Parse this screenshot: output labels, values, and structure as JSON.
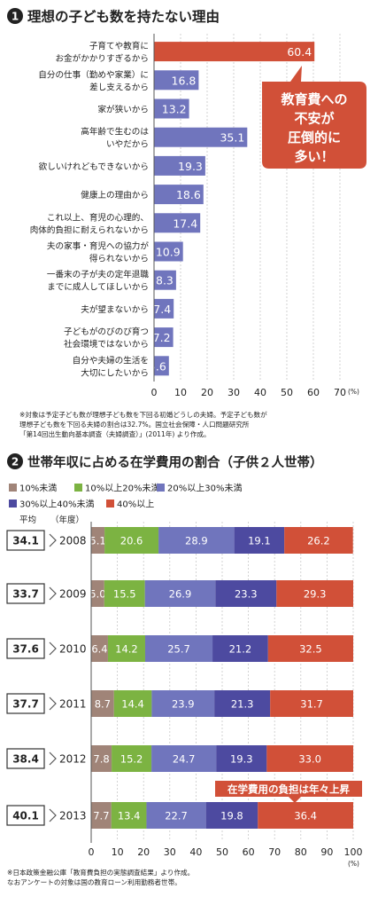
{
  "chart_data": [
    {
      "type": "bar",
      "number": "1",
      "title": "理想の子ども数を持たない理由",
      "categories": [
        [
          "子育てや教育に",
          "お金がかかりすぎるから"
        ],
        [
          "自分の仕事（勤めや家業）に",
          "差し支えるから"
        ],
        [
          "家が狭いから"
        ],
        [
          "高年齢で生むのは",
          "いやだから"
        ],
        [
          "欲しいけれどもできないから"
        ],
        [
          "健康上の理由から"
        ],
        [
          "これ以上、育児の心理的、",
          "肉体的負担に耐えられないから"
        ],
        [
          "夫の家事・育児への協力が",
          "得られないから"
        ],
        [
          "一番末の子が夫の定年退職",
          "までに成人してほしいから"
        ],
        [
          "夫が望まないから"
        ],
        [
          "子どもがのびのび育つ",
          "社会環境ではないから"
        ],
        [
          "自分や夫婦の生活を",
          "大切にしたいから"
        ]
      ],
      "values": [
        60.4,
        16.8,
        13.2,
        35.1,
        19.3,
        18.6,
        17.4,
        10.9,
        8.3,
        7.4,
        7.2,
        5.6
      ],
      "xlim": [
        0,
        70
      ],
      "xticks": [
        0,
        10,
        20,
        30,
        40,
        50,
        60,
        70
      ],
      "unit": "(%)",
      "callout": [
        "教育費への",
        "不安が",
        "圧倒的に",
        "多い！"
      ],
      "notes": [
        "※対象は予定子ども数が理想子ども数を下回る初婚どうしの夫婦。予定子ども数が",
        "理想子ども数を下回る夫婦の割合は32.7%。国立社会保障・人口問題研究所",
        "「第14回出生動向基本調査（夫婦調査）」(2011年) より作成。"
      ]
    },
    {
      "type": "stacked_bar",
      "number": "2",
      "title": "世帯年収に占める在学費用の割合（子供２人世帯）",
      "legend": [
        "10%未満",
        "10%以上20%未満",
        "20%以上30%未満",
        "30%以上40%未満",
        "40%以上"
      ],
      "colors": [
        "#a08478",
        "#7cb342",
        "#7075bd",
        "#4d4aa0",
        "#d15038"
      ],
      "avg_header": "平均",
      "year_header": "（年度）",
      "years": [
        "2008",
        "2009",
        "2010",
        "2011",
        "2012",
        "2013"
      ],
      "averages": [
        "34.1",
        "33.7",
        "37.6",
        "37.7",
        "38.4",
        "40.1"
      ],
      "series": [
        {
          "name": "10%未満",
          "values": [
            5.1,
            5.0,
            6.4,
            8.7,
            7.8,
            7.7
          ]
        },
        {
          "name": "10%以上20%未満",
          "values": [
            20.6,
            15.5,
            14.2,
            14.4,
            15.2,
            13.4
          ]
        },
        {
          "name": "20%以上30%未満",
          "values": [
            28.9,
            26.9,
            25.7,
            23.9,
            24.7,
            22.7
          ]
        },
        {
          "name": "30%以上40%未満",
          "values": [
            19.1,
            23.3,
            21.2,
            21.3,
            19.3,
            19.8
          ]
        },
        {
          "name": "40%以上",
          "values": [
            26.2,
            29.3,
            32.5,
            31.7,
            33.0,
            36.4
          ]
        }
      ],
      "xlim": [
        0,
        100
      ],
      "xticks": [
        0,
        10,
        20,
        30,
        40,
        50,
        60,
        70,
        80,
        90,
        100
      ],
      "unit": "(%)",
      "callout": "在学費用の負担は年々上昇",
      "notes": [
        "※日本政策金融公庫「教育費負担の実態調査結果」より作成。",
        "なおアンケートの対象は国の教育ローン利用勤務者世帯。"
      ]
    }
  ],
  "colors": {
    "bar_main": "#d15038",
    "bar_other": "#7075bd",
    "callout": "#d15038"
  }
}
